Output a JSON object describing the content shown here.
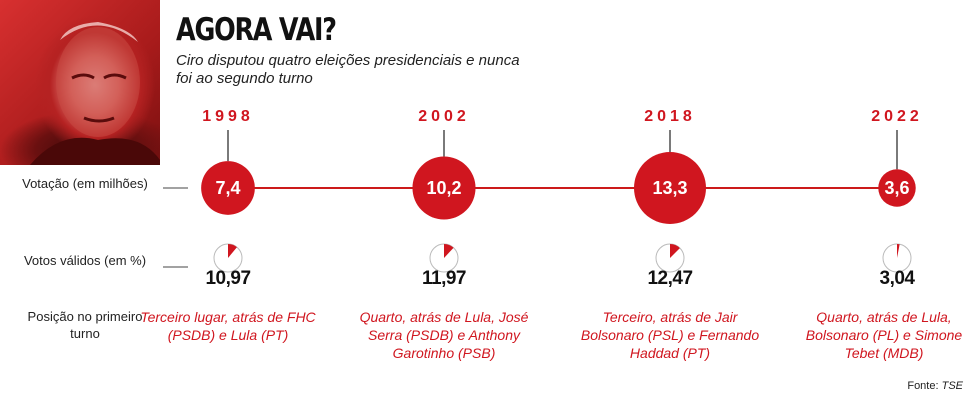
{
  "title": "AGORA VAI?",
  "subtitle": "Ciro disputou quatro eleições presidenciais e nunca foi ao segundo turno",
  "row_labels": {
    "votacao": "Votação (em milhões)",
    "votos_validos": "Votos válidos (em %)",
    "posicao": "Posição no primeiro turno"
  },
  "source_label": "Fonte:",
  "source_name": "TSE",
  "colors": {
    "accent": "#d0161f",
    "line": "#cc1a1a",
    "pie_bg": "#ffffff"
  },
  "chart_data": {
    "type": "bubble-timeline",
    "title": "AGORA VAI?",
    "x": [
      "1998",
      "2002",
      "2018",
      "2022"
    ],
    "series": [
      {
        "name": "Votação (em milhões)",
        "values": [
          7.4,
          10.2,
          13.3,
          3.6
        ]
      },
      {
        "name": "Votos válidos (em %)",
        "values": [
          10.97,
          11.97,
          12.47,
          3.04
        ]
      }
    ],
    "votes_labels": [
      "7,4",
      "10,2",
      "13,3",
      "3,6"
    ],
    "pct_labels": [
      "10,97",
      "11,97",
      "12,47",
      "3,04"
    ],
    "positions": [
      "Terceiro lugar, atrás de FHC (PSDB) e Lula (PT)",
      "Quarto, atrás de Lula, José Serra (PSDB) e Anthony Garotinho (PSB)",
      "Terceiro, atrás de Jair Bolsonaro (PSL) e Fernando Haddad (PT)",
      "Quarto, atrás de Lula, Bolsonaro (PL) e Simone Tebet (MDB)"
    ]
  }
}
